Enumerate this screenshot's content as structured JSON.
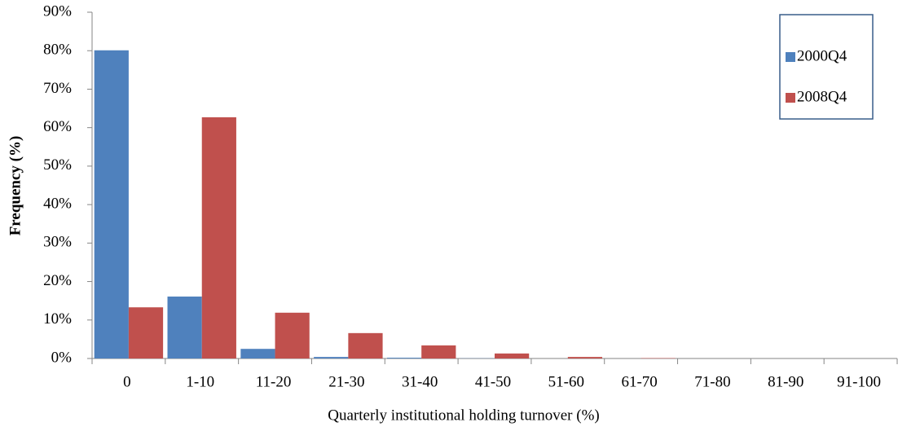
{
  "chart_data": {
    "type": "bar",
    "x_label": "Quarterly institutional holding turnover (%)",
    "y_label": "Frequency  (%)",
    "categories": [
      "0",
      "1-10",
      "11-20",
      "21-30",
      "31-40",
      "41-50",
      "51-60",
      "61-70",
      "71-80",
      "81-90",
      "91-100"
    ],
    "series": [
      {
        "name": "2000Q4",
        "color": "#4f81bd",
        "values": [
          80.1,
          16.1,
          2.5,
          0.4,
          0.2,
          0.05,
          0,
          0,
          0,
          0,
          0
        ]
      },
      {
        "name": "2008Q4",
        "color": "#c0504d",
        "values": [
          13.3,
          62.7,
          11.9,
          6.6,
          3.4,
          1.3,
          0.4,
          0.1,
          0,
          0,
          0
        ]
      }
    ],
    "ylim": [
      0,
      90
    ],
    "yticks": [
      {
        "value": 0,
        "label": "0%"
      },
      {
        "value": 10,
        "label": "10%"
      },
      {
        "value": 20,
        "label": "20%"
      },
      {
        "value": 30,
        "label": "30%"
      },
      {
        "value": 40,
        "label": "40%"
      },
      {
        "value": 50,
        "label": "50%"
      },
      {
        "value": 60,
        "label": "60%"
      },
      {
        "value": 70,
        "label": "70%"
      },
      {
        "value": 80,
        "label": "80%"
      },
      {
        "value": 90,
        "label": "90%"
      }
    ],
    "grid": false,
    "legend": "top-right"
  }
}
